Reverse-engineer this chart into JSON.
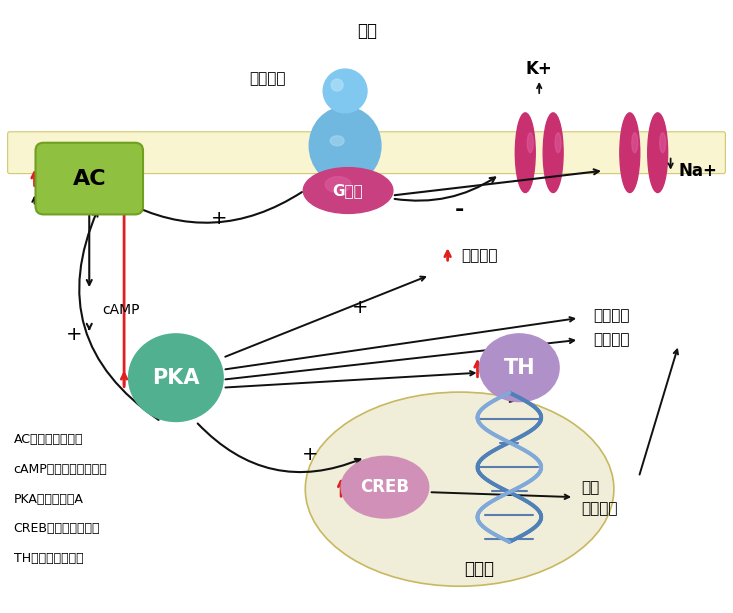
{
  "bg_color": "#ffffff",
  "membrane_color": "#f8f5d0",
  "ac_color": "#90c040",
  "ac_color_dark": "#70a020",
  "pka_color": "#50b090",
  "th_color": "#b090c8",
  "creb_color": "#d090b8",
  "g_protein_color": "#c84080",
  "opioid_body_color": "#70b8e0",
  "opioid_head_color": "#80c8f0",
  "k_channel_color": "#c83070",
  "nucleus_color": "#f0edd8",
  "nucleus_edge": "#c8b860",
  "red_color": "#e02020",
  "arrow_color": "#111111",
  "labels": {
    "opioid": "阿片",
    "receptor": "阿片受体",
    "g_protein": "G蛋白",
    "ac": "AC",
    "camp": "cAMP",
    "pka": "PKA",
    "th": "TH",
    "creb": "CREB",
    "k_plus": "K+",
    "na_plus": "Na+",
    "electrical": "电兴奋性",
    "cell_metabolism": "细胞代谢",
    "process_change": "过程改变",
    "nucleus": "细胞核",
    "gene_change": "改变",
    "gene_expr": "基因表达",
    "legend_ac": "AC：腺苷酸环化酶",
    "legend_camp": "cAMP：环腺苷酸１磷酸",
    "legend_pka": "PKA：蛋白激酶A",
    "legend_creb": "CREB：转录调控蛋白",
    "legend_th": "TH：酰氨酸羟化酶"
  },
  "figsize": [
    7.33,
    6.13
  ],
  "dpi": 100
}
